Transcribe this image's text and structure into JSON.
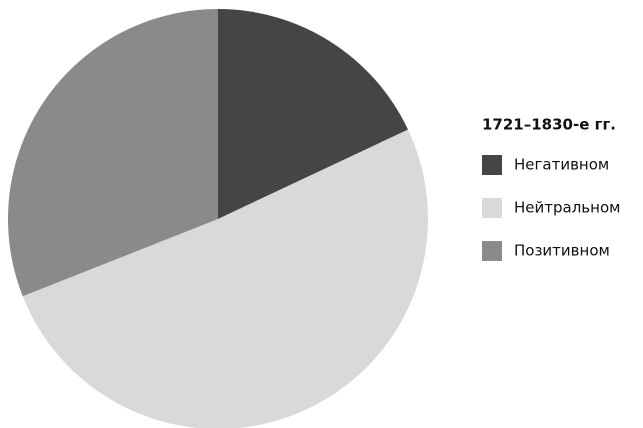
{
  "chart_data": {
    "type": "pie",
    "legend_title": "1721–1830-е гг.",
    "categories": [
      "Негативном",
      "Нейтральном",
      "Позитивном"
    ],
    "values": [
      18,
      51,
      31
    ],
    "colors": [
      "#454545",
      "#d9d9d9",
      "#8a8a8a"
    ],
    "legend": "right"
  }
}
